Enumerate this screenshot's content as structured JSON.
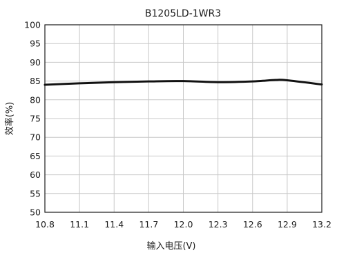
{
  "chart_data": {
    "type": "line",
    "title": "B1205LD-1WR3",
    "xlabel": "输入电压(V)",
    "ylabel": "效率(%)",
    "xlim": [
      10.8,
      13.2
    ],
    "ylim": [
      50,
      100
    ],
    "x_ticks": [
      "10.8",
      "11.1",
      "11.4",
      "11.7",
      "12.0",
      "12.3",
      "12.6",
      "12.9",
      "13.2"
    ],
    "y_ticks": [
      "100",
      "95",
      "90",
      "85",
      "80",
      "75",
      "70",
      "65",
      "60",
      "55",
      "50"
    ],
    "grid": true,
    "series": [
      {
        "x": [
          10.8,
          11.1,
          11.4,
          11.7,
          12.0,
          12.3,
          12.6,
          12.8,
          12.9,
          13.2
        ],
        "y": [
          84.0,
          84.4,
          84.7,
          84.9,
          85.0,
          84.7,
          84.9,
          85.3,
          85.2,
          84.1
        ]
      }
    ],
    "colors": {
      "line": "#111111",
      "grid": "#c8c8c8",
      "frame": "#1a1a1a"
    }
  }
}
